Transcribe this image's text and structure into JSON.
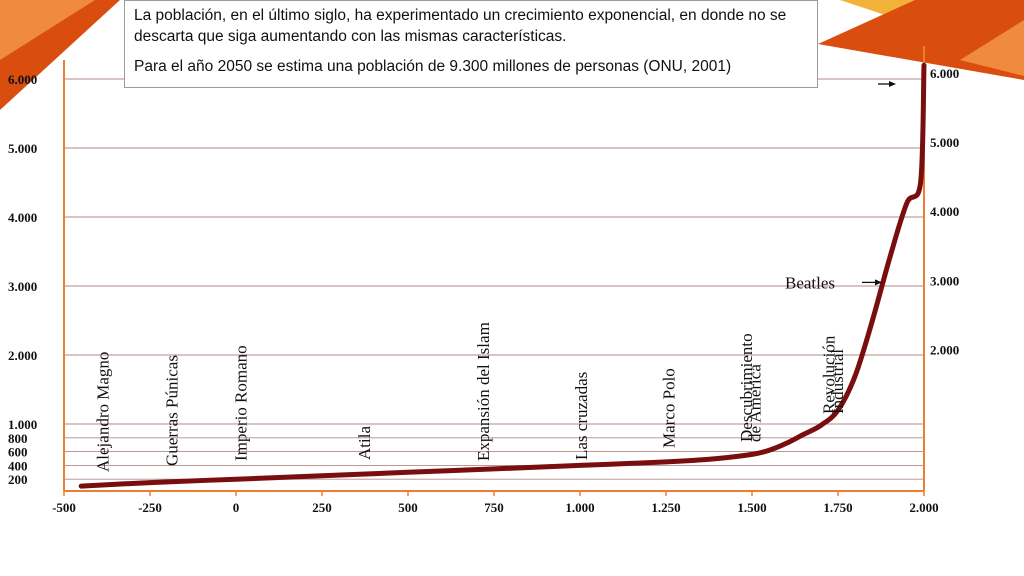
{
  "chart_data": {
    "type": "line",
    "title": "",
    "xlabel": "",
    "ylabel": "",
    "xlim": [
      -500,
      2000
    ],
    "ylim": [
      0,
      6000
    ],
    "x_ticks": [
      -500,
      -250,
      0,
      250,
      500,
      750,
      1000,
      1250,
      1500,
      1750,
      2000
    ],
    "x_tick_labels": [
      "-500",
      "-250",
      "0",
      "250",
      "500",
      "750",
      "1.000",
      "1.250",
      "1.500",
      "1.750",
      "2.000"
    ],
    "y_left_ticks": [
      200,
      400,
      600,
      800,
      1000,
      2000,
      3000,
      4000,
      5000,
      6000
    ],
    "y_left_tick_labels": [
      "200",
      "400",
      "600",
      "800",
      "1.000",
      "2.000",
      "3.000",
      "4.000",
      "5.000",
      "6.000"
    ],
    "y_right_ticks": [
      2000,
      3000,
      4000,
      5000,
      6000
    ],
    "y_right_tick_labels": [
      "2.000",
      "3.000",
      "4.000",
      "5.000",
      "6.000"
    ],
    "grid": true,
    "line_color": "#7a0e0e",
    "axis_color": "#ed7d31",
    "series": [
      {
        "x": [
          -450,
          -250,
          0,
          250,
          500,
          750,
          1000,
          1250,
          1400,
          1500,
          1550,
          1600,
          1650,
          1700,
          1750,
          1800,
          1850,
          1900,
          1950,
          1990,
          2000
        ],
        "y": [
          100,
          150,
          200,
          250,
          300,
          350,
          400,
          450,
          500,
          560,
          620,
          720,
          850,
          980,
          1200,
          1700,
          2500,
          3400,
          4200,
          4500,
          6200
        ]
      }
    ],
    "annotations": [
      {
        "text": "Alejandro Magno",
        "x": -370
      },
      {
        "text": "Guerras Púnicas",
        "x": -170
      },
      {
        "text": "Imperio Romano",
        "x": 30
      },
      {
        "text": "Atila",
        "x": 390
      },
      {
        "text": "Expansión del Islam",
        "x": 735
      },
      {
        "text": "Las cruzadas",
        "x": 1020
      },
      {
        "text": "Marco Polo",
        "x": 1275
      },
      {
        "text": "Descubrimiento",
        "x": 1500
      },
      {
        "text": "de América",
        "x": 1525
      },
      {
        "text": "Revolución",
        "x": 1740
      },
      {
        "text": "Industrial",
        "x": 1765
      },
      {
        "text": "Beatles",
        "x": 1960,
        "y": 3000
      },
      {
        "text": "",
        "x": 1995,
        "y": 5850
      }
    ]
  },
  "callout": {
    "paragraph1": "La población, en el último siglo, ha experimentado un crecimiento exponencial, en donde no se descarta que siga aumentando con las mismas características.",
    "paragraph2": "Para el año 2050 se estima una población de 9.300 millones de personas (ONU, 2001)"
  },
  "decoration": {
    "accent_orange": "#ed7d31",
    "accent_dark": "#d94e0f",
    "accent_gold": "#f2b23a"
  }
}
